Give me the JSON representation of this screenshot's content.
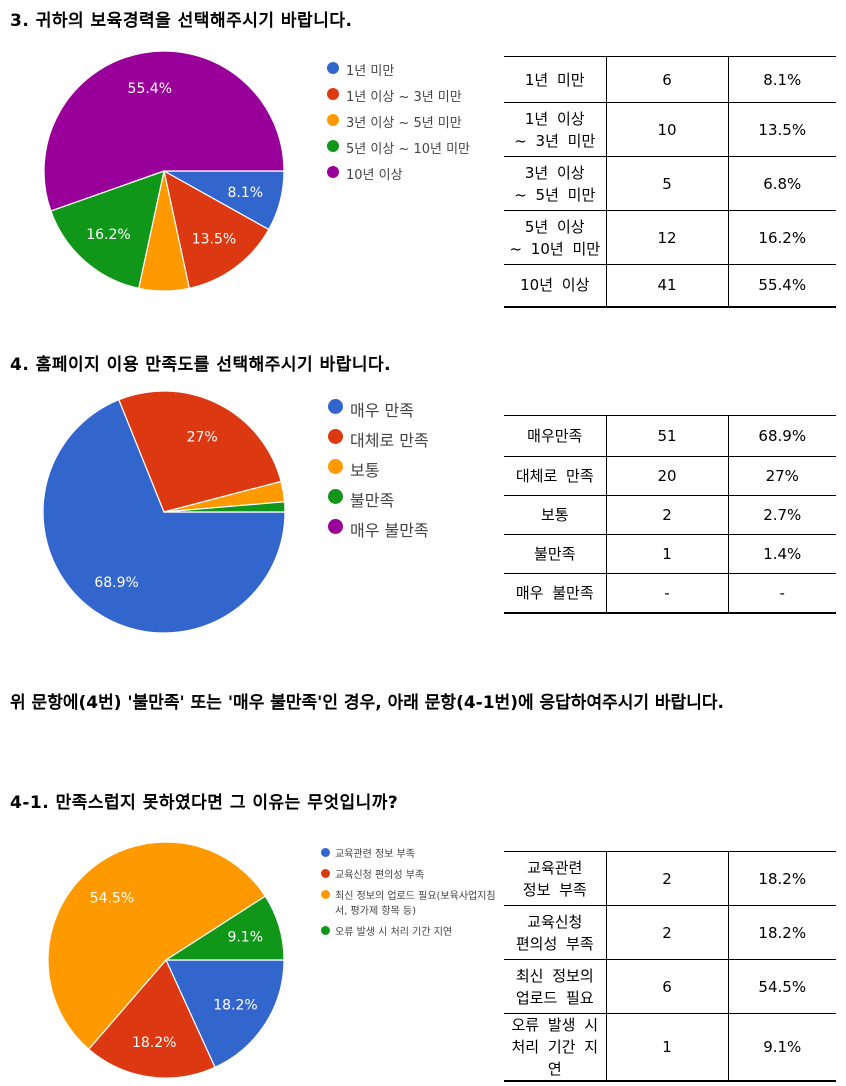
{
  "sections": [
    {
      "title": "3. 귀하의 보육경력을 선택해주시기 바랍니다.",
      "table": [
        {
          "label": "1년 미만",
          "count": "6",
          "percent": "8.1%"
        },
        {
          "label": "1년 이상\n~ 3년 미만",
          "count": "10",
          "percent": "13.5%"
        },
        {
          "label": "3년 이상\n~ 5년 미만",
          "count": "5",
          "percent": "6.8%"
        },
        {
          "label": "5년 이상\n~ 10년 미만",
          "count": "12",
          "percent": "16.2%"
        },
        {
          "label": "10년 이상",
          "count": "41",
          "percent": "55.4%"
        }
      ]
    },
    {
      "title": "4. 홈페이지 이용 만족도를 선택해주시기 바랍니다.",
      "table": [
        {
          "label": "매우만족",
          "count": "51",
          "percent": "68.9%"
        },
        {
          "label": "대체로 만족",
          "count": "20",
          "percent": "27%"
        },
        {
          "label": "보통",
          "count": "2",
          "percent": "2.7%"
        },
        {
          "label": "불만족",
          "count": "1",
          "percent": "1.4%"
        },
        {
          "label": "매우 불만족",
          "count": "-",
          "percent": "-"
        }
      ]
    },
    {
      "title": "4-1. 만족스럽지 못하였다면 그 이유는 무엇입니까?",
      "table": [
        {
          "label": "교육관련\n정보 부족",
          "count": "2",
          "percent": "18.2%"
        },
        {
          "label": "교육신청\n편의성 부족",
          "count": "2",
          "percent": "18.2%"
        },
        {
          "label": "최신 정보의\n업로드 필요",
          "count": "6",
          "percent": "54.5%"
        },
        {
          "label": "오류 발생 시\n처리 기간 지연",
          "count": "1",
          "percent": "9.1%"
        }
      ]
    }
  ],
  "note": "위 문항에(4번) '불만족' 또는 '매우 불만족'인 경우, 아래 문항(4-1번)에 응답하여주시기 바랍니다.",
  "chart_data": [
    {
      "type": "pie",
      "categories": [
        "1년 미만",
        "1년 이상 ~ 3년 미만",
        "3년 이상 ~ 5년 미만",
        "5년 이상 ~ 10년 미만",
        "10년 이상"
      ],
      "values": [
        6,
        10,
        5,
        12,
        41
      ],
      "data_labels": [
        "8.1%",
        "13.5%",
        "",
        "16.2%",
        "55.4%"
      ],
      "colors": [
        "#3366cc",
        "#dc3912",
        "#ff9900",
        "#109618",
        "#990099"
      ],
      "legend": "right"
    },
    {
      "type": "pie",
      "categories": [
        "매우 만족",
        "대체로 만족",
        "보통",
        "불만족",
        "매우 불만족"
      ],
      "values": [
        51,
        20,
        2,
        1,
        0
      ],
      "data_labels": [
        "68.9%",
        "27%",
        "",
        "",
        ""
      ],
      "colors": [
        "#3366cc",
        "#dc3912",
        "#ff9900",
        "#109618",
        "#990099"
      ],
      "legend": "right"
    },
    {
      "type": "pie",
      "categories": [
        "교육관련 정보 부족",
        "교육신청 편의성 부족",
        "최신 정보의 업로드 필요(보육사업지침서, 평가제 항목 등)",
        "오류 발생 시 처리 기간 지연"
      ],
      "legend_labels": [
        "교육관련 정보 부족",
        "교육신청 편의성 부족",
        "최신 정보의 업로드 필요(보육사업지침\n서, 평가제 항목 등)",
        "오류 발생 시 처리 기간 지연"
      ],
      "values": [
        2,
        2,
        6,
        1
      ],
      "data_labels": [
        "18.2%",
        "18.2%",
        "54.5%",
        "9.1%"
      ],
      "colors": [
        "#3366cc",
        "#dc3912",
        "#ff9900",
        "#109618"
      ],
      "legend": "right"
    }
  ]
}
